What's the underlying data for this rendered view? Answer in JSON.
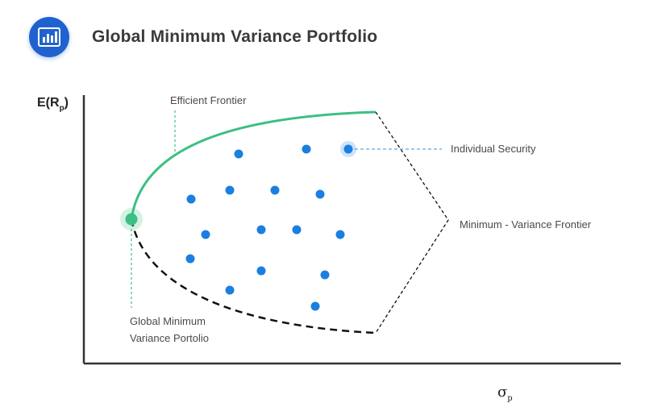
{
  "header": {
    "title": "Global Minimum Variance Portfolio",
    "logo_icon": "bar-chart-icon"
  },
  "axes": {
    "y_label_main": "E(R",
    "y_label_sub": "p",
    "y_label_close": ")",
    "x_label_main": "σ",
    "x_label_sub": "p"
  },
  "labels": {
    "efficient_frontier": "Efficient Frontier",
    "individual_security": "Individual Security",
    "minimum_variance_frontier": "Minimum - Variance Frontier",
    "gmv_line1": "Global Minimum",
    "gmv_line2": "Variance Portolio"
  },
  "colors": {
    "brand": "#1f62cf",
    "efficient_frontier": "#3cbf84",
    "security_dot": "#1a7fe0",
    "dashed_frontier": "#111111",
    "leader_line": "#5aa8e6"
  }
}
